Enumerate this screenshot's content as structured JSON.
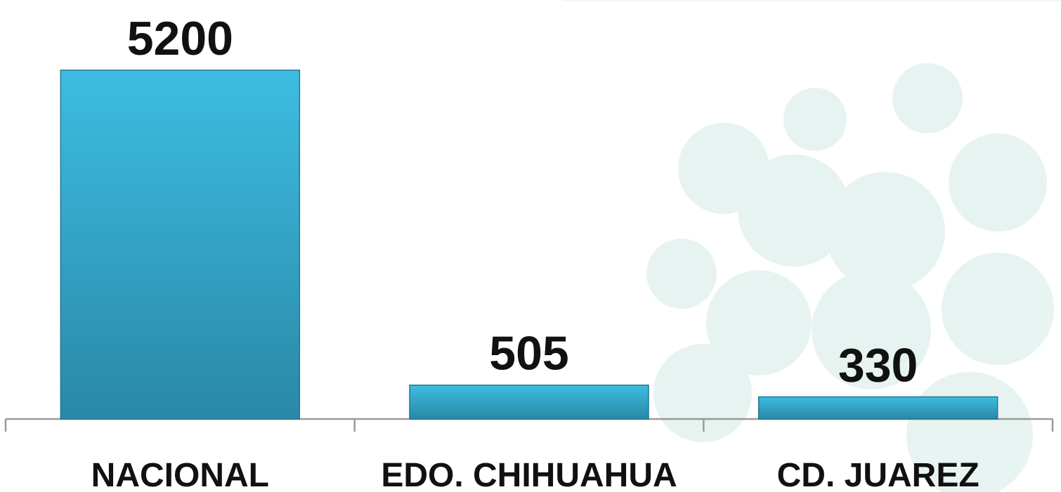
{
  "chart_data": {
    "type": "bar",
    "categories": [
      "NACIONAL",
      "EDO. CHIHUAHUA",
      "CD. JUAREZ"
    ],
    "values": [
      5200,
      505,
      330
    ],
    "color": "#35a9cc"
  }
}
